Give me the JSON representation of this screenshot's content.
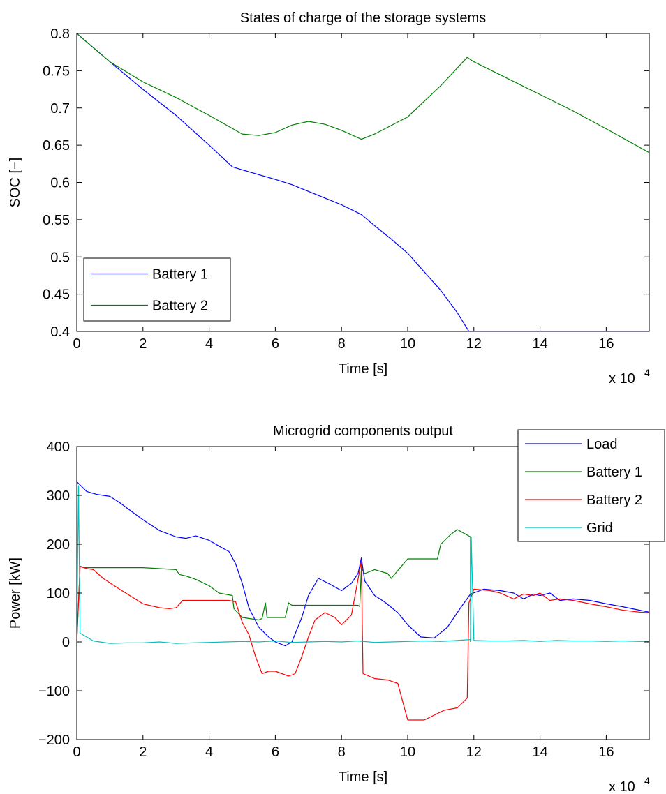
{
  "chart_data": [
    {
      "type": "line",
      "title": "States of charge of the storage systems",
      "xlabel": "Time [s]",
      "ylabel": "SOC [−]",
      "x_exponent_label": "x 10",
      "x_exponent": "4",
      "xlim": [
        0,
        17.3
      ],
      "ylim": [
        0.4,
        0.8
      ],
      "xticks": [
        "0",
        "2",
        "4",
        "6",
        "8",
        "10",
        "12",
        "14",
        "16"
      ],
      "xtick_values": [
        0,
        2,
        4,
        6,
        8,
        10,
        12,
        14,
        16
      ],
      "yticks": [
        "0.4",
        "0.45",
        "0.5",
        "0.55",
        "0.6",
        "0.65",
        "0.7",
        "0.75",
        "0.8"
      ],
      "ytick_values": [
        0.4,
        0.45,
        0.5,
        0.55,
        0.6,
        0.65,
        0.7,
        0.75,
        0.8
      ],
      "legend_position": "bottom-left",
      "series": [
        {
          "name": "Battery 1",
          "color": "#0000ff",
          "x": [
            0,
            1,
            2,
            3,
            4,
            4.7,
            5,
            6,
            6.5,
            7,
            7.5,
            8,
            8.6,
            9,
            9.5,
            10,
            10.5,
            11,
            11.5,
            11.85,
            12,
            14,
            16,
            17.3
          ],
          "y": [
            0.8,
            0.762,
            0.725,
            0.69,
            0.65,
            0.621,
            0.617,
            0.604,
            0.597,
            0.588,
            0.579,
            0.57,
            0.557,
            0.542,
            0.524,
            0.505,
            0.48,
            0.455,
            0.425,
            0.4,
            0.4,
            0.4,
            0.4,
            0.4
          ]
        },
        {
          "name": "Battery 2",
          "color": "#008000",
          "x": [
            0,
            1,
            2,
            3,
            4,
            5,
            5.5,
            6,
            6.5,
            7,
            7.5,
            8,
            8.6,
            9,
            10,
            11,
            11.8,
            12,
            13,
            14,
            15,
            16,
            17.3
          ],
          "y": [
            0.8,
            0.762,
            0.735,
            0.714,
            0.69,
            0.665,
            0.663,
            0.667,
            0.677,
            0.682,
            0.678,
            0.67,
            0.658,
            0.665,
            0.688,
            0.73,
            0.768,
            0.762,
            0.74,
            0.718,
            0.696,
            0.672,
            0.64
          ]
        }
      ]
    },
    {
      "type": "line",
      "title": "Microgrid components output",
      "xlabel": "Time [s]",
      "ylabel": "Power [kW]",
      "x_exponent_label": "x 10",
      "x_exponent": "4",
      "xlim": [
        0,
        17.3
      ],
      "ylim": [
        -200,
        400
      ],
      "xticks": [
        "0",
        "2",
        "4",
        "6",
        "8",
        "10",
        "12",
        "14",
        "16"
      ],
      "xtick_values": [
        0,
        2,
        4,
        6,
        8,
        10,
        12,
        14,
        16
      ],
      "yticks": [
        "−200",
        "−100",
        "0",
        "100",
        "200",
        "300",
        "400"
      ],
      "ytick_values": [
        -200,
        -100,
        0,
        100,
        200,
        300,
        400
      ],
      "legend_position": "top-right",
      "series": [
        {
          "name": "Load",
          "color": "#0000ff",
          "x": [
            0,
            0.3,
            0.6,
            1.0,
            1.3,
            1.6,
            2.0,
            2.5,
            3.0,
            3.3,
            3.6,
            4.0,
            4.3,
            4.6,
            4.8,
            5.0,
            5.2,
            5.5,
            5.8,
            6.0,
            6.3,
            6.5,
            6.8,
            7.0,
            7.3,
            7.6,
            8.0,
            8.3,
            8.5,
            8.6,
            8.7,
            9.0,
            9.3,
            9.7,
            10.0,
            10.4,
            10.8,
            11.2,
            11.6,
            11.9,
            12.3,
            12.8,
            13.2,
            13.5,
            13.8,
            14.0,
            14.3,
            14.6,
            15.0,
            15.5,
            16.0,
            16.5,
            17.0,
            17.3
          ],
          "y": [
            328,
            308,
            302,
            298,
            285,
            270,
            250,
            228,
            215,
            212,
            217,
            208,
            196,
            185,
            160,
            120,
            70,
            30,
            10,
            0,
            -8,
            0,
            50,
            95,
            130,
            120,
            105,
            120,
            140,
            172,
            125,
            95,
            82,
            60,
            35,
            10,
            8,
            30,
            70,
            98,
            108,
            105,
            100,
            88,
            98,
            95,
            100,
            85,
            88,
            85,
            78,
            72,
            65,
            61
          ]
        },
        {
          "name": "Battery 1",
          "color": "#008000",
          "x": [
            0,
            0.1,
            0.2,
            1.0,
            2.0,
            3.0,
            3.1,
            3.3,
            3.6,
            4.0,
            4.3,
            4.7,
            4.75,
            5.0,
            5.5,
            5.6,
            5.7,
            5.75,
            6.0,
            6.3,
            6.4,
            6.5,
            7.0,
            7.5,
            8.0,
            8.5,
            8.55,
            8.6,
            8.7,
            9.0,
            9.4,
            9.5,
            10.0,
            10.5,
            10.9,
            11.0,
            11.3,
            11.5,
            11.9,
            11.9
          ],
          "y": [
            0,
            155,
            152,
            152,
            152,
            148,
            138,
            135,
            128,
            115,
            100,
            95,
            68,
            50,
            45,
            48,
            80,
            50,
            50,
            50,
            80,
            75,
            75,
            75,
            75,
            75,
            72,
            150,
            140,
            148,
            140,
            130,
            170,
            170,
            170,
            200,
            220,
            230,
            215,
            0
          ]
        },
        {
          "name": "Battery 2",
          "color": "#ff0000",
          "x": [
            0,
            0.1,
            0.3,
            0.5,
            0.8,
            1.2,
            1.6,
            2.0,
            2.5,
            2.8,
            3.0,
            3.2,
            4.0,
            4.6,
            4.8,
            5.0,
            5.2,
            5.4,
            5.6,
            5.8,
            6.0,
            6.4,
            6.6,
            6.8,
            7.0,
            7.2,
            7.5,
            7.8,
            8.0,
            8.3,
            8.6,
            8.65,
            9.0,
            9.4,
            9.7,
            10.0,
            10.5,
            10.8,
            11.1,
            11.5,
            11.8,
            11.85,
            12.0,
            12.5,
            12.8,
            13.2,
            13.5,
            13.8,
            14.0,
            14.3,
            14.6,
            15.0,
            15.5,
            16.0,
            16.5,
            17.0,
            17.3
          ],
          "y": [
            0,
            155,
            150,
            148,
            130,
            112,
            95,
            78,
            70,
            68,
            70,
            85,
            85,
            85,
            82,
            40,
            15,
            -30,
            -65,
            -60,
            -60,
            -70,
            -65,
            -30,
            10,
            45,
            60,
            50,
            35,
            55,
            165,
            -65,
            -75,
            -78,
            -85,
            -160,
            -160,
            -150,
            -140,
            -135,
            -115,
            80,
            108,
            105,
            100,
            88,
            98,
            95,
            100,
            85,
            88,
            85,
            78,
            72,
            65,
            61,
            60
          ]
        },
        {
          "name": "Grid",
          "color": "#00bfbf",
          "x": [
            0,
            0.05,
            0.1,
            0.3,
            0.5,
            1.0,
            1.5,
            2.0,
            2.5,
            3.0,
            3.5,
            4.0,
            4.5,
            5.0,
            5.5,
            6.0,
            6.5,
            7.0,
            7.5,
            8.0,
            8.5,
            9.0,
            9.5,
            10.0,
            10.5,
            11.0,
            11.5,
            11.9,
            11.92,
            12.0,
            12.5,
            13.0,
            13.5,
            14.0,
            14.5,
            15.0,
            15.5,
            16.0,
            16.5,
            17.0,
            17.3
          ],
          "y": [
            0,
            320,
            18,
            10,
            2,
            -3,
            -2,
            -2,
            0,
            -3,
            -2,
            -1,
            0,
            1,
            0,
            2,
            -1,
            0,
            1,
            0,
            2,
            -1,
            0,
            1,
            2,
            1,
            3,
            5,
            215,
            3,
            2,
            2,
            3,
            1,
            3,
            2,
            2,
            1,
            2,
            1,
            1
          ]
        }
      ]
    }
  ]
}
